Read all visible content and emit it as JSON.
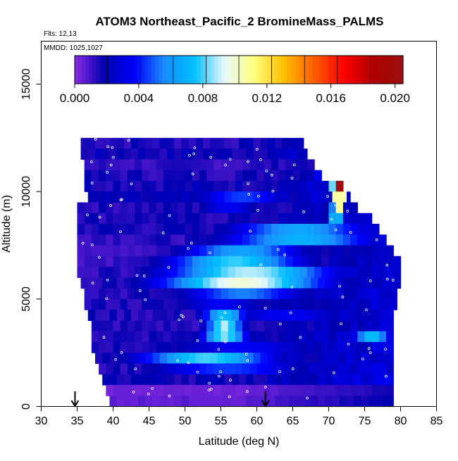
{
  "chart_data": {
    "type": "heatmap",
    "title": "ATOM3 Northeast_Pacific_2 BromineMass_PALMS",
    "flights_label": "Flts: 12,13",
    "dates_label": "MMDD: 1025,1027",
    "xlabel": "Latitude (deg N)",
    "ylabel": "Altitude (m)",
    "xlim": [
      30,
      85
    ],
    "ylim": [
      0,
      17000
    ],
    "xticks": [
      "30",
      "35",
      "40",
      "45",
      "50",
      "55",
      "60",
      "65",
      "70",
      "75",
      "80",
      "85"
    ],
    "yticks": [
      "0",
      "5000",
      "10000",
      "15000"
    ],
    "colorbar": {
      "range": [
        0.0,
        0.0205
      ],
      "tick_labels": [
        "0.000",
        "0.004",
        "0.008",
        "0.012",
        "0.016",
        "0.020"
      ],
      "tick_values": [
        0.0,
        0.004,
        0.008,
        0.012,
        0.016,
        0.02
      ],
      "colors": [
        "#8a2be2",
        "#0000b0",
        "#0000ff",
        "#1a8cff",
        "#00bfff",
        "#e8f8ff",
        "#ffff80",
        "#ffc000",
        "#ff6000",
        "#ff0000",
        "#b00000",
        "#9a1010"
      ]
    },
    "arrows_at_latitude": [
      34.7,
      61.2
    ],
    "bands": [
      {
        "alt_top": 12500,
        "alt_bottom": 12000,
        "lat_min": 35.5,
        "lat_max": 66.5,
        "base": 0.0015,
        "hot": []
      },
      {
        "alt_top": 12000,
        "alt_bottom": 11500,
        "lat_min": 35.5,
        "lat_max": 67,
        "base": 0.0018,
        "hot": []
      },
      {
        "alt_top": 11500,
        "alt_bottom": 11000,
        "lat_min": 36,
        "lat_max": 68,
        "base": 0.0012,
        "hot": []
      },
      {
        "alt_top": 11000,
        "alt_bottom": 10500,
        "lat_min": 36,
        "lat_max": 69,
        "base": 0.0015,
        "hot": [
          {
            "center": 69.5,
            "width": 1.0,
            "value": 0.008
          }
        ]
      },
      {
        "alt_top": 10500,
        "alt_bottom": 10000,
        "lat_min": 36,
        "lat_max": 72,
        "base": 0.0018,
        "hot": [
          {
            "center": 71.5,
            "width": 0.8,
            "value": 0.0195
          },
          {
            "center": 70.8,
            "width": 0.6,
            "value": 0.01
          }
        ]
      },
      {
        "alt_top": 10000,
        "alt_bottom": 9500,
        "lat_min": 36.5,
        "lat_max": 73,
        "base": 0.0018,
        "hot": [
          {
            "center": 71.5,
            "width": 0.8,
            "value": 0.015
          },
          {
            "center": 58,
            "width": 6,
            "value": 0.004
          }
        ]
      },
      {
        "alt_top": 9500,
        "alt_bottom": 9000,
        "lat_min": 35,
        "lat_max": 74,
        "base": 0.0015,
        "hot": [
          {
            "center": 71.3,
            "width": 0.9,
            "value": 0.011
          },
          {
            "center": 56,
            "width": 4,
            "value": 0.003
          }
        ]
      },
      {
        "alt_top": 9000,
        "alt_bottom": 8500,
        "lat_min": 35,
        "lat_max": 76,
        "base": 0.0016,
        "hot": [
          {
            "center": 71,
            "width": 1.0,
            "value": 0.008
          }
        ]
      },
      {
        "alt_top": 8500,
        "alt_bottom": 8000,
        "lat_min": 35,
        "lat_max": 77,
        "base": 0.0016,
        "hot": [
          {
            "center": 66,
            "width": 9,
            "value": 0.006
          }
        ]
      },
      {
        "alt_top": 8000,
        "alt_bottom": 7500,
        "lat_min": 35,
        "lat_max": 78,
        "base": 0.0014,
        "hot": [
          {
            "center": 66,
            "width": 10,
            "value": 0.0065
          }
        ]
      },
      {
        "alt_top": 7500,
        "alt_bottom": 7000,
        "lat_min": 35,
        "lat_max": 79,
        "base": 0.0012,
        "hot": [
          {
            "center": 58,
            "width": 8,
            "value": 0.006
          }
        ]
      },
      {
        "alt_top": 7000,
        "alt_bottom": 6500,
        "lat_min": 35,
        "lat_max": 80,
        "base": 0.0012,
        "hot": [
          {
            "center": 57,
            "width": 9,
            "value": 0.0075
          }
        ]
      },
      {
        "alt_top": 6500,
        "alt_bottom": 6000,
        "lat_min": 35,
        "lat_max": 80,
        "base": 0.0014,
        "hot": [
          {
            "center": 59,
            "width": 11,
            "value": 0.0085
          }
        ]
      },
      {
        "alt_top": 6000,
        "alt_bottom": 5500,
        "lat_min": 35.5,
        "lat_max": 80,
        "base": 0.0014,
        "hot": [
          {
            "center": 58,
            "width": 11,
            "value": 0.0095
          }
        ]
      },
      {
        "alt_top": 5500,
        "alt_bottom": 5000,
        "lat_min": 36,
        "lat_max": 79.5,
        "base": 0.0015,
        "hot": [
          {
            "center": 58,
            "width": 8,
            "value": 0.005
          }
        ]
      },
      {
        "alt_top": 5000,
        "alt_bottom": 4500,
        "lat_min": 36,
        "lat_max": 79.5,
        "base": 0.0015,
        "hot": [
          {
            "center": 55,
            "width": 6,
            "value": 0.003
          }
        ]
      },
      {
        "alt_top": 4500,
        "alt_bottom": 4000,
        "lat_min": 36.5,
        "lat_max": 79,
        "base": 0.0015,
        "hot": [
          {
            "center": 55.5,
            "width": 3,
            "value": 0.007
          },
          {
            "center": 64,
            "width": 8,
            "value": 0.003
          }
        ]
      },
      {
        "alt_top": 4000,
        "alt_bottom": 3500,
        "lat_min": 37,
        "lat_max": 79,
        "base": 0.0014,
        "hot": [
          {
            "center": 55.5,
            "width": 2.5,
            "value": 0.0085
          }
        ]
      },
      {
        "alt_top": 3500,
        "alt_bottom": 3000,
        "lat_min": 37,
        "lat_max": 79,
        "base": 0.0016,
        "hot": [
          {
            "center": 55.5,
            "width": 3,
            "value": 0.008
          },
          {
            "center": 76,
            "width": 2.5,
            "value": 0.007
          }
        ]
      },
      {
        "alt_top": 3000,
        "alt_bottom": 2500,
        "lat_min": 37,
        "lat_max": 79,
        "base": 0.0016,
        "hot": [
          {
            "center": 58,
            "width": 10,
            "value": 0.003
          }
        ]
      },
      {
        "alt_top": 2500,
        "alt_bottom": 2000,
        "lat_min": 37.5,
        "lat_max": 79,
        "base": 0.0016,
        "hot": [
          {
            "center": 53,
            "width": 9,
            "value": 0.0075
          }
        ]
      },
      {
        "alt_top": 2000,
        "alt_bottom": 1500,
        "lat_min": 38,
        "lat_max": 79,
        "base": 0.0016,
        "hot": [
          {
            "center": 56,
            "width": 10,
            "value": 0.004
          }
        ]
      },
      {
        "alt_top": 1500,
        "alt_bottom": 1000,
        "lat_min": 38.5,
        "lat_max": 79,
        "base": 0.0018,
        "hot": []
      },
      {
        "alt_top": 1000,
        "alt_bottom": 500,
        "lat_min": 39,
        "lat_max": 79,
        "base": 0.0004,
        "hot": []
      },
      {
        "alt_top": 500,
        "alt_bottom": 0,
        "lat_min": 39.5,
        "lat_max": 79,
        "base": 0.0006,
        "hot": []
      }
    ]
  }
}
